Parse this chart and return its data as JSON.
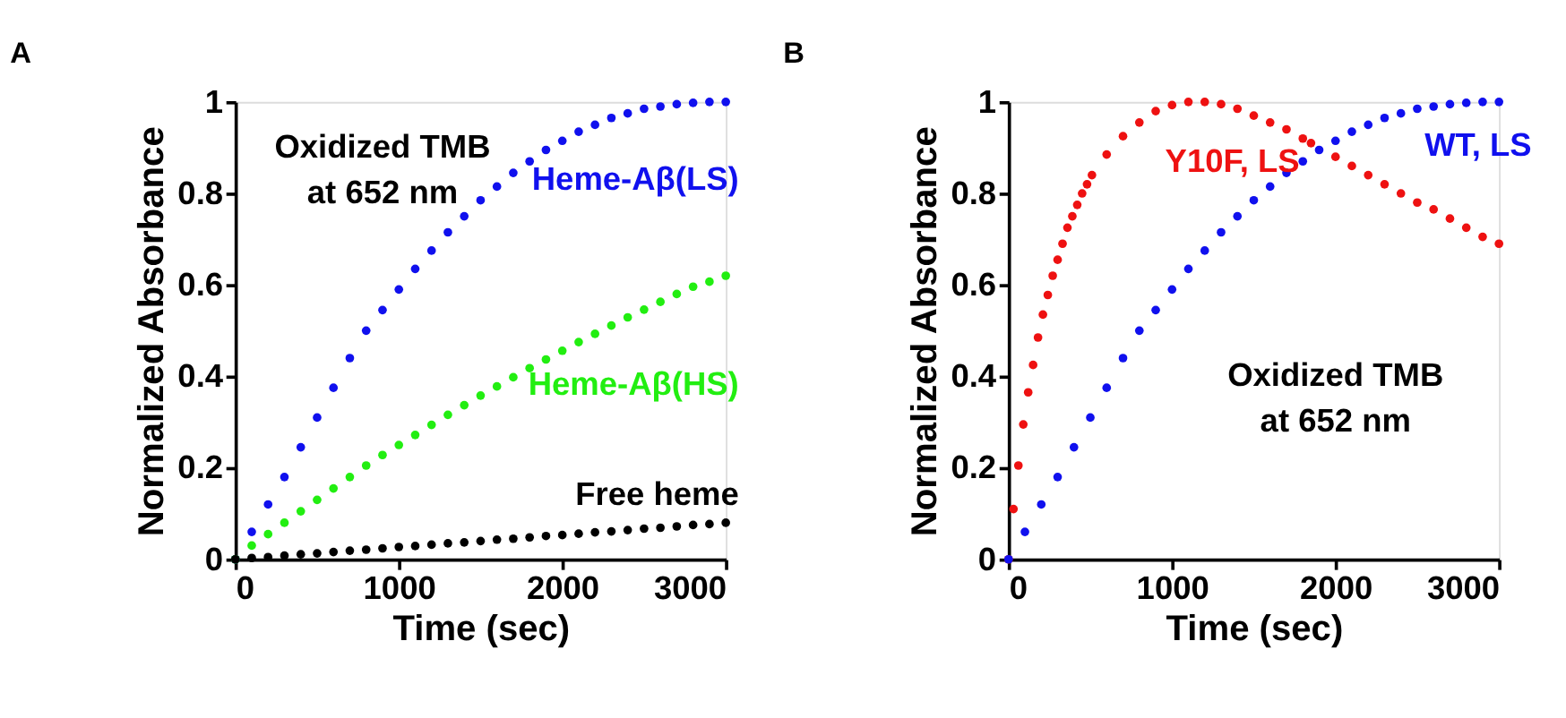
{
  "chart_data": [
    {
      "type": "scatter",
      "title": "A",
      "xlabel": "Time (sec)",
      "ylabel": "Normalized Absorbance",
      "xlim": [
        0,
        3000
      ],
      "xticks": [
        0,
        1000,
        2000,
        3000
      ],
      "ylim": [
        0,
        1
      ],
      "yticks": [
        0,
        0.2,
        0.4,
        0.6,
        0.8,
        1
      ],
      "grid": false,
      "marker": "circle",
      "annotations": [
        "Oxidized TMB\nat 652 nm"
      ],
      "x": [
        0,
        100,
        200,
        300,
        400,
        500,
        600,
        700,
        800,
        900,
        1000,
        1100,
        1200,
        1300,
        1400,
        1500,
        1600,
        1700,
        1800,
        1900,
        2000,
        2100,
        2200,
        2300,
        2400,
        2500,
        2600,
        2700,
        2800,
        2900,
        3000
      ],
      "series": [
        {
          "name": "Heme-Aβ(LS)",
          "color": "#1010ee",
          "values": [
            0,
            0.06,
            0.12,
            0.18,
            0.245,
            0.31,
            0.375,
            0.44,
            0.5,
            0.545,
            0.59,
            0.635,
            0.675,
            0.715,
            0.75,
            0.785,
            0.815,
            0.845,
            0.87,
            0.895,
            0.915,
            0.935,
            0.95,
            0.965,
            0.975,
            0.985,
            0.99,
            0.995,
            0.998,
            1.0,
            1.0
          ]
        },
        {
          "name": "Heme-Aβ(HS)",
          "color": "#22ee11",
          "values": [
            0,
            0.03,
            0.055,
            0.08,
            0.105,
            0.13,
            0.155,
            0.18,
            0.205,
            0.228,
            0.25,
            0.272,
            0.294,
            0.316,
            0.337,
            0.358,
            0.378,
            0.398,
            0.418,
            0.437,
            0.456,
            0.475,
            0.493,
            0.511,
            0.529,
            0.546,
            0.563,
            0.58,
            0.596,
            0.607,
            0.62
          ]
        },
        {
          "name": "Free heme",
          "color": "#000000",
          "values": [
            0,
            0.003,
            0.005,
            0.008,
            0.011,
            0.013,
            0.016,
            0.019,
            0.021,
            0.024,
            0.027,
            0.029,
            0.032,
            0.035,
            0.037,
            0.04,
            0.043,
            0.045,
            0.048,
            0.051,
            0.053,
            0.056,
            0.059,
            0.061,
            0.064,
            0.067,
            0.069,
            0.072,
            0.075,
            0.077,
            0.08
          ]
        }
      ]
    },
    {
      "type": "scatter",
      "title": "B",
      "xlabel": "Time (sec)",
      "ylabel": "Normalized Absorbance",
      "xlim": [
        0,
        3000
      ],
      "xticks": [
        0,
        1000,
        2000,
        3000
      ],
      "ylim": [
        0,
        1
      ],
      "yticks": [
        0,
        0.2,
        0.4,
        0.6,
        0.8,
        1
      ],
      "grid": false,
      "marker": "circle",
      "annotations": [
        "Oxidized TMB\nat 652 nm"
      ],
      "series": [
        {
          "name": "Y10F, LS",
          "color": "#ee1111",
          "x": [
            0,
            30,
            60,
            90,
            120,
            150,
            180,
            210,
            240,
            270,
            300,
            330,
            360,
            390,
            420,
            450,
            480,
            510,
            600,
            700,
            800,
            900,
            1000,
            1100,
            1200,
            1300,
            1400,
            1500,
            1600,
            1700,
            1800,
            1850,
            2000,
            2100,
            2200,
            2300,
            2400,
            2500,
            2600,
            2700,
            2800,
            2900,
            3000
          ],
          "values": [
            0,
            0.11,
            0.205,
            0.295,
            0.365,
            0.425,
            0.485,
            0.535,
            0.578,
            0.62,
            0.655,
            0.69,
            0.725,
            0.75,
            0.775,
            0.8,
            0.82,
            0.84,
            0.885,
            0.925,
            0.955,
            0.98,
            0.993,
            1.0,
            1.0,
            0.995,
            0.985,
            0.97,
            0.955,
            0.94,
            0.92,
            0.91,
            0.88,
            0.86,
            0.84,
            0.82,
            0.8,
            0.78,
            0.765,
            0.745,
            0.725,
            0.705,
            0.69
          ]
        },
        {
          "name": "WT, LS",
          "color": "#1010ee",
          "x": [
            0,
            100,
            200,
            300,
            400,
            500,
            600,
            700,
            800,
            900,
            1000,
            1100,
            1200,
            1300,
            1400,
            1500,
            1600,
            1700,
            1800,
            1900,
            2000,
            2100,
            2200,
            2300,
            2400,
            2500,
            2600,
            2700,
            2800,
            2900,
            3000
          ],
          "values": [
            0,
            0.06,
            0.12,
            0.18,
            0.245,
            0.31,
            0.375,
            0.44,
            0.5,
            0.545,
            0.59,
            0.635,
            0.675,
            0.715,
            0.75,
            0.785,
            0.815,
            0.845,
            0.87,
            0.895,
            0.915,
            0.935,
            0.95,
            0.965,
            0.975,
            0.985,
            0.99,
            0.995,
            0.998,
            1.0,
            1.0
          ]
        }
      ]
    }
  ]
}
